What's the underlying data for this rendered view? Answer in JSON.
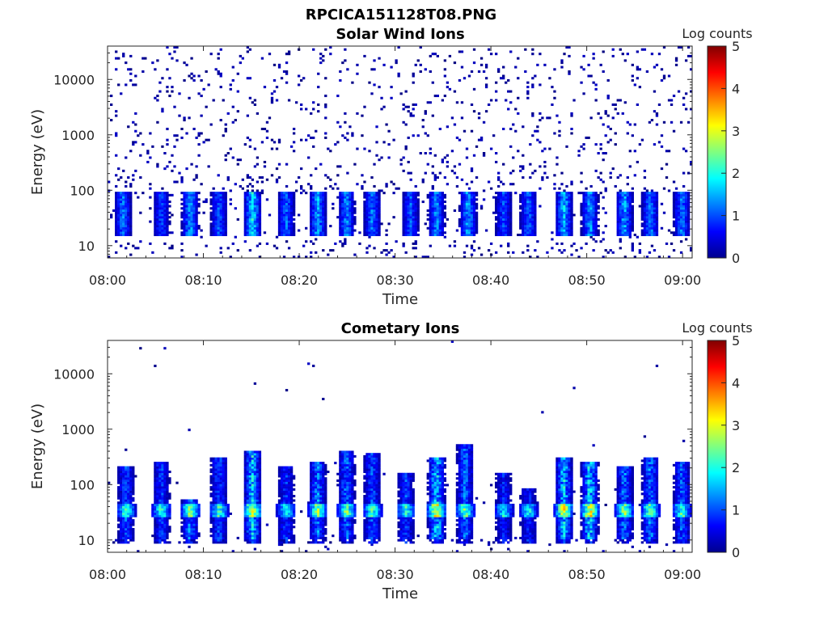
{
  "figure": {
    "title": "RPCICA151128T08.PNG"
  },
  "chart_data": [
    {
      "type": "heatmap",
      "title": "Solar Wind Ions",
      "xlabel": "Time",
      "ylabel": "Energy (eV)",
      "xticks": [
        "08:00",
        "08:10",
        "08:20",
        "08:30",
        "08:40",
        "08:50",
        "09:00"
      ],
      "xlim_minutes": [
        0,
        61
      ],
      "yticks": [
        "10",
        "100",
        "1000",
        "10000"
      ],
      "ylim": [
        6,
        40000
      ],
      "yscale": "log",
      "colorbar": {
        "label": "Log counts",
        "ticks": [
          "0",
          "1",
          "2",
          "3",
          "4",
          "5"
        ],
        "range": [
          0,
          5
        ],
        "colormap": "jet"
      },
      "colors": {
        "low": "#00008f",
        "mid": "#00ffff",
        "high": "#800000"
      },
      "event_minutes": [
        1.5,
        5.5,
        8.5,
        11.5,
        15,
        18.5,
        21.8,
        24.8,
        27.5,
        31.5,
        34.2,
        37.5,
        41.2,
        43.8,
        47.5,
        50.2,
        53.8,
        56.5,
        59.8
      ],
      "event_peak_log_counts": [
        1.5,
        1.2,
        1.8,
        1.3,
        2.2,
        1.4,
        1.8,
        1.6,
        1.5,
        1.3,
        1.6,
        1.8,
        1.2,
        1.4,
        2.0,
        1.7,
        1.8,
        1.6,
        1.5
      ],
      "background_log_counts": 0.3
    },
    {
      "type": "heatmap",
      "title": "Cometary Ions",
      "xlabel": "Time",
      "ylabel": "Energy (eV)",
      "xticks": [
        "08:00",
        "08:10",
        "08:20",
        "08:30",
        "08:40",
        "08:50",
        "09:00"
      ],
      "xlim_minutes": [
        0,
        61
      ],
      "yticks": [
        "10",
        "100",
        "1000",
        "10000"
      ],
      "ylim": [
        6,
        40000
      ],
      "yscale": "log",
      "colorbar": {
        "label": "Log counts",
        "ticks": [
          "0",
          "1",
          "2",
          "3",
          "4",
          "5"
        ],
        "range": [
          0,
          5
        ],
        "colormap": "jet"
      },
      "event_minutes": [
        1.8,
        5.5,
        8.5,
        11.5,
        15.0,
        18.5,
        21.8,
        24.8,
        27.5,
        31.0,
        34.2,
        37.2,
        41.2,
        43.8,
        47.5,
        50.2,
        53.8,
        56.5,
        59.8
      ],
      "event_peak_log_counts": [
        2.6,
        2.5,
        3.0,
        2.6,
        3.6,
        2.4,
        3.0,
        2.9,
        2.7,
        2.5,
        3.8,
        2.9,
        2.2,
        2.3,
        3.6,
        3.8,
        3.0,
        3.0,
        2.7
      ],
      "event_top_energy_ev": [
        200,
        250,
        50,
        300,
        400,
        200,
        250,
        400,
        350,
        150,
        300,
        500,
        150,
        80,
        300,
        250,
        200,
        300,
        250
      ],
      "band_energy_ev": [
        25,
        45
      ],
      "background_log_counts": 0.2
    }
  ]
}
